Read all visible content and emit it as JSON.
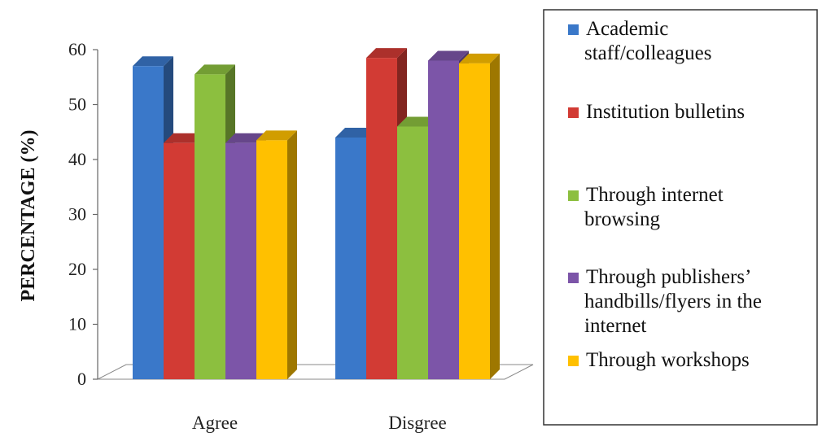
{
  "chart_data": {
    "type": "bar",
    "title": "",
    "xlabel": "",
    "ylabel": "PERCENTAGE (%)",
    "ylim": [
      0,
      60
    ],
    "yticks": [
      0,
      10,
      20,
      30,
      40,
      50,
      60
    ],
    "grid": false,
    "legend_position": "right",
    "categories": [
      "Agree",
      "Disgree"
    ],
    "series": [
      {
        "name": "Academic staff/colleagues",
        "color": "#3A78C9",
        "values": [
          57,
          44
        ]
      },
      {
        "name": "Institution bulletins",
        "color": "#D23B34",
        "values": [
          43,
          58.5
        ]
      },
      {
        "name": "Through internet browsing",
        "color": "#8CBF3F",
        "values": [
          55.5,
          46
        ]
      },
      {
        "name": "Through publishers’ handbills/flyers in the internet",
        "color": "#7C55A8",
        "values": [
          43,
          58
        ]
      },
      {
        "name": "Through workshops",
        "color": "#FFC000",
        "values": [
          43.5,
          57.5
        ]
      }
    ]
  }
}
